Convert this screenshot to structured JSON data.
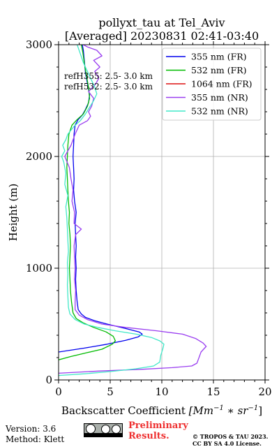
{
  "chart_data": {
    "type": "line",
    "title": "pollyxt_tau at Tel_Aviv",
    "subtitle": "[Averaged] 20230831 02:41-03:40",
    "xlabel_prefix": "Backscatter Coefficient ",
    "xlabel_unit": "[Mm",
    "xlabel_exp1": "−1",
    "xlabel_mid": " ∗ sr",
    "xlabel_exp2": "−1",
    "xlabel_end": "]",
    "ylabel": "Height (m)",
    "xlim": [
      0,
      20
    ],
    "ylim": [
      0,
      3000
    ],
    "xticks": [
      "0",
      "5",
      "10",
      "15",
      "20"
    ],
    "yticks": [
      "0",
      "1000",
      "2000",
      "3000"
    ],
    "grid": true,
    "legend_position": "top-right",
    "annotations": [
      "refH355:  2.5- 3.0 km",
      "refH532:  2.5- 3.0 km"
    ],
    "series": [
      {
        "name": "355 nm (FR)",
        "color": "#0000ee",
        "points": [
          [
            0.0,
            250
          ],
          [
            2.5,
            285
          ],
          [
            4.7,
            320
          ],
          [
            6.5,
            355
          ],
          [
            7.7,
            385
          ],
          [
            8.1,
            410
          ],
          [
            7.8,
            430
          ],
          [
            6.5,
            460
          ],
          [
            4.7,
            500
          ],
          [
            3.5,
            530
          ],
          [
            2.6,
            560
          ],
          [
            2.2,
            590
          ],
          [
            1.9,
            630
          ],
          [
            1.8,
            700
          ],
          [
            1.7,
            800
          ],
          [
            1.65,
            900
          ],
          [
            1.7,
            1000
          ],
          [
            1.65,
            1100
          ],
          [
            1.7,
            1200
          ],
          [
            1.65,
            1300
          ],
          [
            1.6,
            1400
          ],
          [
            1.7,
            1500
          ],
          [
            1.55,
            1600
          ],
          [
            1.45,
            1700
          ],
          [
            1.5,
            1800
          ],
          [
            1.45,
            1900
          ],
          [
            1.4,
            2000
          ],
          [
            1.45,
            2100
          ],
          [
            1.5,
            2200
          ],
          [
            1.6,
            2280
          ],
          [
            1.9,
            2330
          ],
          [
            2.3,
            2370
          ],
          [
            2.6,
            2420
          ],
          [
            2.9,
            2480
          ],
          [
            3.0,
            2550
          ],
          [
            2.8,
            2650
          ],
          [
            2.6,
            2750
          ],
          [
            2.5,
            2850
          ],
          [
            2.4,
            2950
          ],
          [
            2.3,
            3000
          ]
        ]
      },
      {
        "name": "532 nm (FR)",
        "color": "#00bb00",
        "points": [
          [
            0.0,
            180
          ],
          [
            1.2,
            210
          ],
          [
            2.8,
            245
          ],
          [
            4.2,
            275
          ],
          [
            5.2,
            320
          ],
          [
            5.5,
            350
          ],
          [
            5.3,
            390
          ],
          [
            4.6,
            430
          ],
          [
            3.4,
            470
          ],
          [
            2.4,
            510
          ],
          [
            1.7,
            550
          ],
          [
            1.4,
            600
          ],
          [
            1.25,
            700
          ],
          [
            1.15,
            800
          ],
          [
            1.1,
            900
          ],
          [
            1.05,
            1000
          ],
          [
            1.1,
            1100
          ],
          [
            1.15,
            1200
          ],
          [
            1.1,
            1300
          ],
          [
            1.0,
            1400
          ],
          [
            1.05,
            1500
          ],
          [
            0.95,
            1600
          ],
          [
            0.9,
            1700
          ],
          [
            0.85,
            1800
          ],
          [
            0.8,
            1900
          ],
          [
            0.85,
            2000
          ],
          [
            0.9,
            2100
          ],
          [
            1.0,
            2200
          ],
          [
            1.3,
            2280
          ],
          [
            1.8,
            2330
          ],
          [
            2.4,
            2380
          ],
          [
            2.8,
            2450
          ],
          [
            3.0,
            2520
          ],
          [
            2.9,
            2620
          ],
          [
            2.7,
            2720
          ],
          [
            2.5,
            2830
          ],
          [
            2.35,
            2930
          ],
          [
            2.2,
            3000
          ]
        ]
      },
      {
        "name": "1064 nm (FR)",
        "color": "#dd1111",
        "points": []
      },
      {
        "name": "355 nm (NR)",
        "color": "#9a3ef0",
        "points": [
          [
            0.0,
            60
          ],
          [
            4.0,
            80
          ],
          [
            8.0,
            95
          ],
          [
            11.0,
            110
          ],
          [
            12.9,
            125
          ],
          [
            13.4,
            150
          ],
          [
            13.6,
            200
          ],
          [
            13.8,
            250
          ],
          [
            14.3,
            300
          ],
          [
            14.0,
            330
          ],
          [
            13.3,
            370
          ],
          [
            12.0,
            410
          ],
          [
            9.5,
            440
          ],
          [
            6.5,
            470
          ],
          [
            4.2,
            500
          ],
          [
            2.8,
            540
          ],
          [
            2.0,
            580
          ],
          [
            1.6,
            630
          ],
          [
            1.6,
            700
          ],
          [
            1.65,
            800
          ],
          [
            1.55,
            900
          ],
          [
            1.6,
            1000
          ],
          [
            1.55,
            1100
          ],
          [
            1.5,
            1200
          ],
          [
            1.65,
            1300
          ],
          [
            2.2,
            1350
          ],
          [
            1.5,
            1400
          ],
          [
            1.55,
            1500
          ],
          [
            1.3,
            1600
          ],
          [
            1.4,
            1700
          ],
          [
            1.2,
            1800
          ],
          [
            1.05,
            1900
          ],
          [
            0.6,
            2000
          ],
          [
            0.9,
            2050
          ],
          [
            1.2,
            2100
          ],
          [
            1.6,
            2200
          ],
          [
            2.0,
            2280
          ],
          [
            2.8,
            2320
          ],
          [
            3.1,
            2360
          ],
          [
            2.9,
            2400
          ],
          [
            3.2,
            2450
          ],
          [
            3.4,
            2520
          ],
          [
            2.9,
            2580
          ],
          [
            3.6,
            2650
          ],
          [
            3.9,
            2700
          ],
          [
            3.5,
            2760
          ],
          [
            4.0,
            2800
          ],
          [
            3.4,
            2860
          ],
          [
            4.2,
            2900
          ],
          [
            3.7,
            2950
          ],
          [
            2.8,
            2980
          ],
          [
            2.4,
            3000
          ]
        ]
      },
      {
        "name": "532 nm (NR)",
        "color": "#40e8c8",
        "points": [
          [
            0.0,
            40
          ],
          [
            2.5,
            55
          ],
          [
            5.0,
            75
          ],
          [
            7.5,
            100
          ],
          [
            9.2,
            125
          ],
          [
            9.8,
            160
          ],
          [
            9.9,
            220
          ],
          [
            10.1,
            280
          ],
          [
            10.2,
            320
          ],
          [
            9.8,
            350
          ],
          [
            9.0,
            380
          ],
          [
            7.5,
            410
          ],
          [
            5.5,
            440
          ],
          [
            3.8,
            470
          ],
          [
            2.5,
            500
          ],
          [
            1.6,
            540
          ],
          [
            1.1,
            590
          ],
          [
            0.95,
            650
          ],
          [
            0.9,
            750
          ],
          [
            0.85,
            850
          ],
          [
            0.9,
            950
          ],
          [
            0.85,
            1050
          ],
          [
            0.95,
            1150
          ],
          [
            0.9,
            1250
          ],
          [
            0.85,
            1350
          ],
          [
            0.8,
            1450
          ],
          [
            0.7,
            1550
          ],
          [
            0.9,
            1650
          ],
          [
            0.6,
            1750
          ],
          [
            0.7,
            1850
          ],
          [
            0.5,
            1950
          ],
          [
            0.3,
            2000
          ],
          [
            0.6,
            2050
          ],
          [
            0.4,
            2100
          ],
          [
            0.7,
            2150
          ],
          [
            0.9,
            2200
          ],
          [
            1.5,
            2270
          ],
          [
            2.1,
            2320
          ],
          [
            2.6,
            2380
          ],
          [
            3.0,
            2440
          ],
          [
            3.4,
            2500
          ],
          [
            3.7,
            2560
          ],
          [
            3.5,
            2620
          ],
          [
            3.1,
            2700
          ],
          [
            2.8,
            2760
          ],
          [
            2.4,
            2840
          ],
          [
            2.1,
            2920
          ],
          [
            1.8,
            3000
          ]
        ]
      }
    ]
  },
  "footer": {
    "version": "Version: 3.6",
    "method": "Method: Klett",
    "preliminary_line1": "Preliminary",
    "preliminary_line2": "Results.",
    "copyright_line1": "© TROPOS & TAU 2023.",
    "copyright_line2": "CC BY SA 4.0 License."
  }
}
